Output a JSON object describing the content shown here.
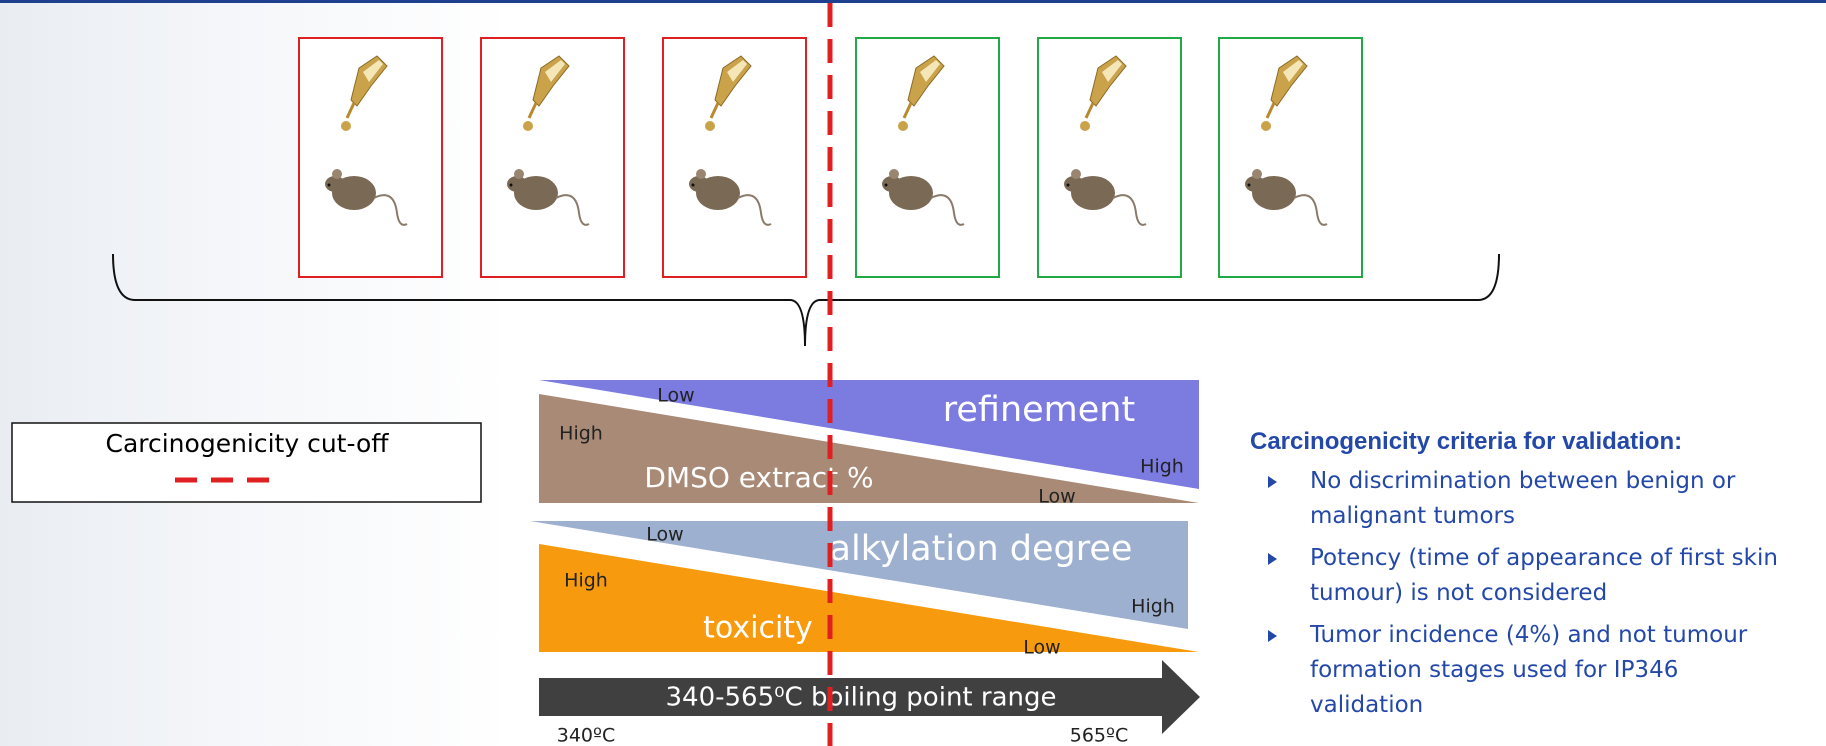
{
  "legend": {
    "label": "Carcinogenicity cut-off"
  },
  "diagram": {
    "refinement": {
      "title": "refinement",
      "low": "Low",
      "high": "High"
    },
    "dmso": {
      "title": "DMSO extract %",
      "high": "High",
      "low": "Low"
    },
    "alkylation": {
      "title": "alkylation degree",
      "low": "Low",
      "high": "High"
    },
    "toxicity": {
      "title": "toxicity",
      "high": "High",
      "low": "Low"
    },
    "arrow": {
      "label": "340-565⁰C boiling point range",
      "start": "340ºC",
      "end": "565ºC"
    }
  },
  "criteria": {
    "title": "Carcinogenicity criteria for validation:",
    "items": [
      "No discrimination between benign or malignant tumors",
      "Potency (time of appearance of first skin tumour) is not considered",
      "Tumor incidence (4%) and not tumour formation stages used for IP346 validation"
    ]
  }
}
